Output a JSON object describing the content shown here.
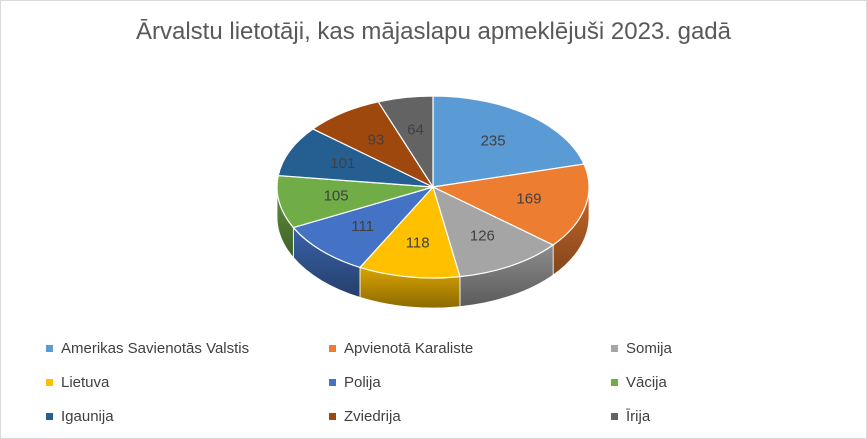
{
  "chart_data": {
    "type": "pie",
    "variant": "3d",
    "title": "Ārvalstu lietotāji, kas mājaslapu apmeklējuši 2023. gadā",
    "legend_position": "bottom",
    "categories": [
      "Amerikas Savienotās Valstis",
      "Apvienotā Karaliste",
      "Somija",
      "Lietuva",
      "Polija",
      "Vācija",
      "Igaunija",
      "Zviedrija",
      "Īrija"
    ],
    "values": [
      235,
      169,
      126,
      118,
      111,
      105,
      101,
      93,
      64
    ],
    "colors": [
      "#5b9bd5",
      "#ed7d31",
      "#a5a5a5",
      "#ffc000",
      "#4472c4",
      "#70ad47",
      "#255e91",
      "#9e480e",
      "#636363"
    ]
  }
}
